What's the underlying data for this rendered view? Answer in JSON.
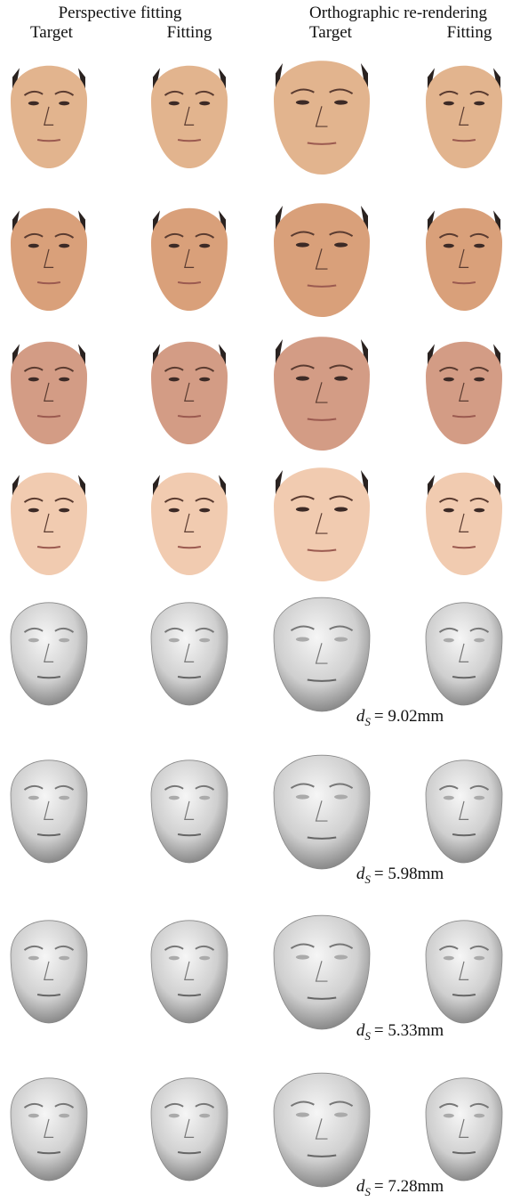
{
  "header": {
    "groups": [
      "Perspective fitting",
      "Orthographic re-rendering"
    ],
    "columns": [
      "Target",
      "Fitting",
      "Target",
      "Fitting"
    ]
  },
  "shape_rows": [
    {
      "symbol": "d",
      "subscript": "S",
      "value": "= 9.02mm"
    },
    {
      "symbol": "d",
      "subscript": "S",
      "value": "= 5.98mm"
    },
    {
      "symbol": "d",
      "subscript": "S",
      "value": "= 5.33mm"
    },
    {
      "symbol": "d",
      "subscript": "S",
      "value": "= 7.28mm"
    }
  ]
}
